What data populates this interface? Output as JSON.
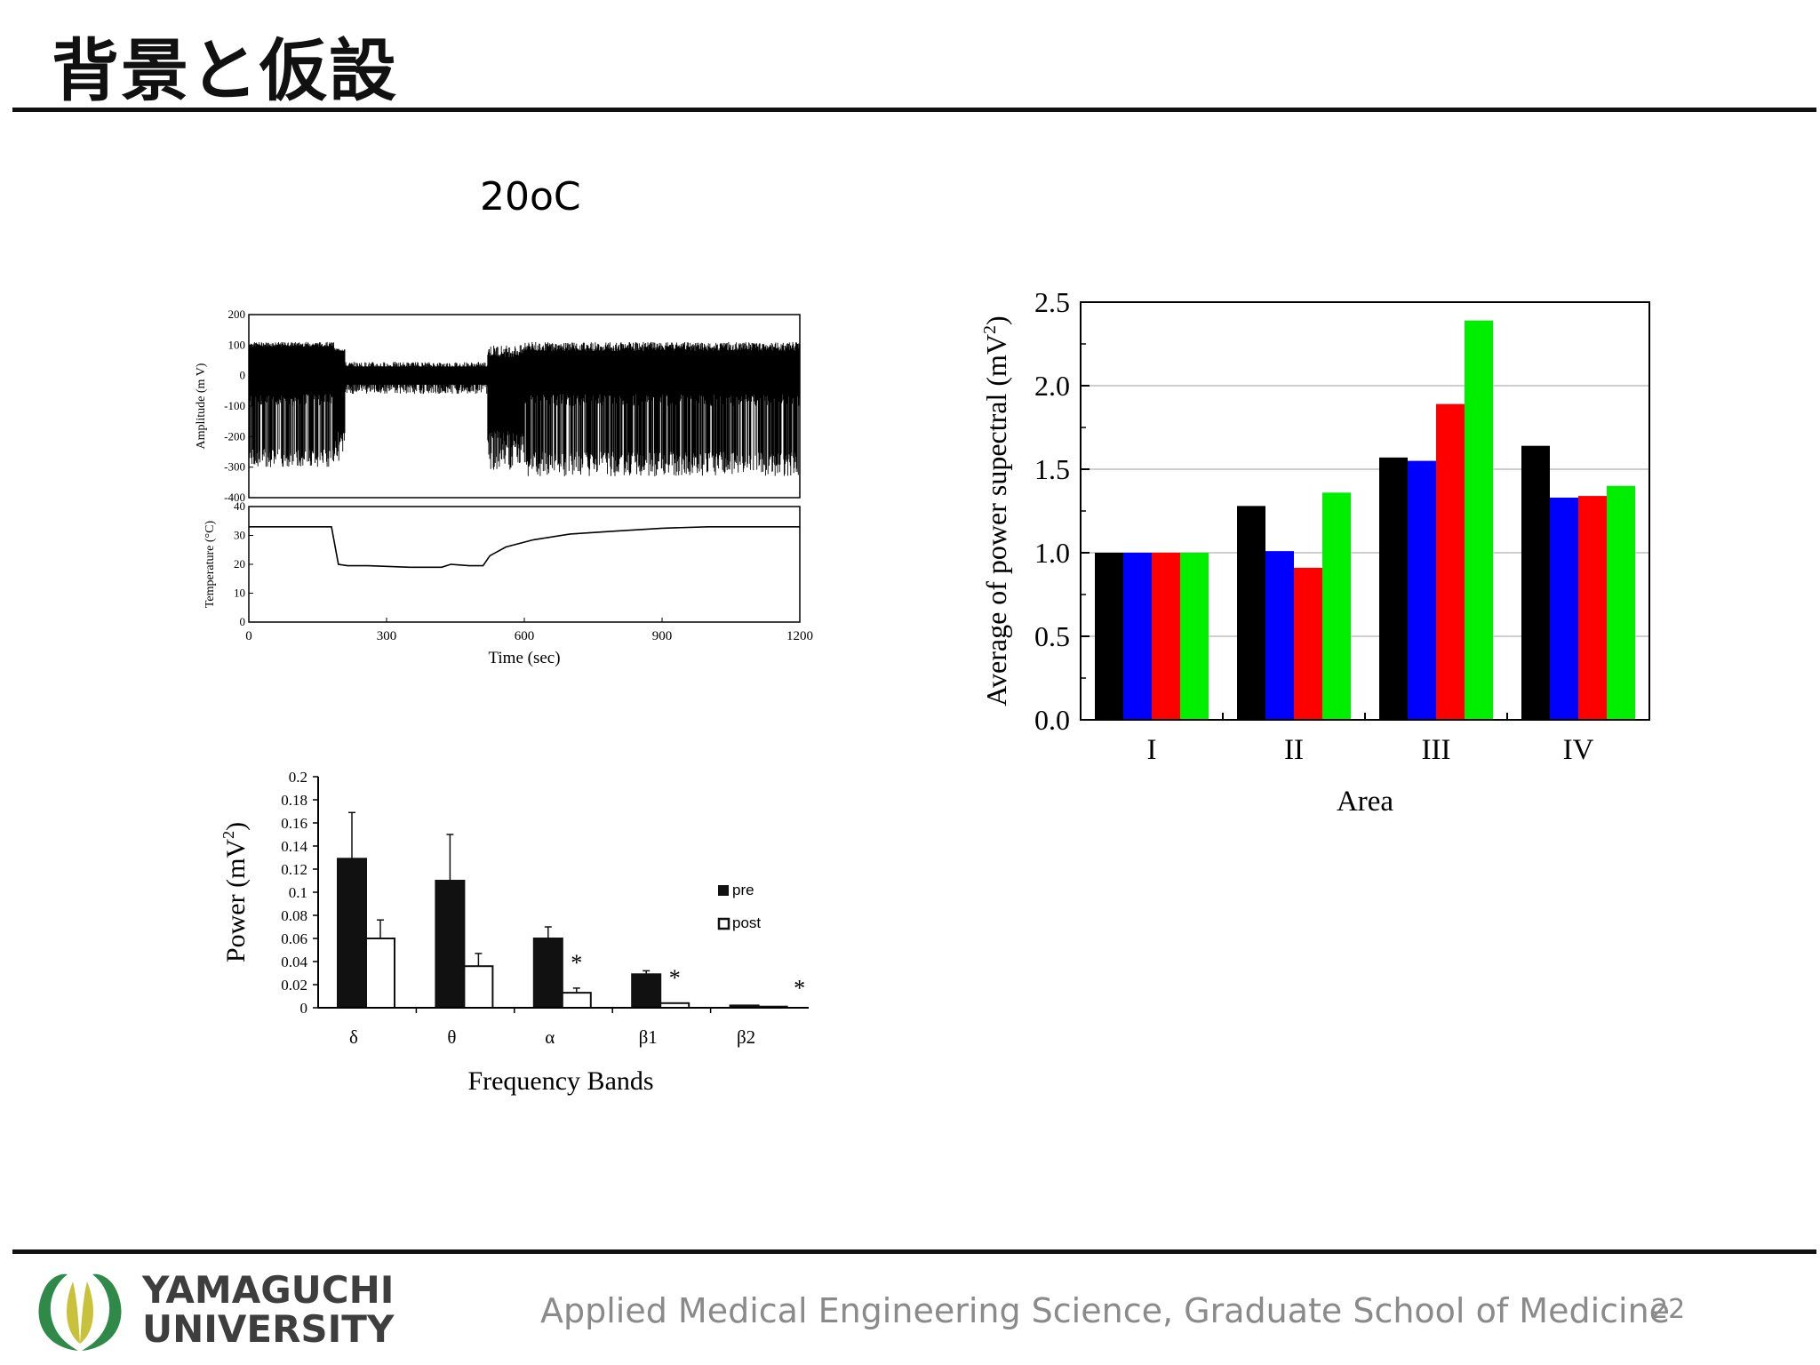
{
  "slide": {
    "title": "背景と仮設",
    "subtitle": "20oC",
    "footer": "Applied Medical Engineering Science, Graduate School of Medicine",
    "page_number": "22",
    "university": {
      "line1": "YAMAGUCHI",
      "line2": "UNIVERSITY"
    },
    "colors": {
      "rule": "#111111",
      "footer_text": "#8a8a8a",
      "logo_green": "#2f8a4a",
      "logo_yellow": "#c8c23a"
    }
  },
  "chart_data": [
    {
      "type": "line",
      "panels": [
        {
          "name": "amplitude",
          "ylabel": "Amplitude (m V)",
          "ylim": [
            -400,
            200
          ],
          "yticks": [
            "200",
            "100",
            "0",
            "-100",
            "-200",
            "-300",
            "-400"
          ],
          "xlim": [
            0,
            1200
          ]
        },
        {
          "name": "temperature",
          "ylabel": "Temperature (°C)",
          "ylim": [
            0,
            40
          ],
          "yticks": [
            "40",
            "30",
            "20",
            "10",
            "0"
          ],
          "xlim": [
            0,
            1200
          ],
          "x": [
            0,
            180,
            195,
            215,
            260,
            350,
            420,
            440,
            480,
            510,
            525,
            560,
            620,
            700,
            800,
            900,
            1000,
            1100,
            1200
          ],
          "y": [
            33,
            33,
            20,
            19.5,
            19.5,
            19,
            19,
            20,
            19.5,
            19.5,
            23,
            26,
            28.5,
            30.5,
            31.5,
            32.5,
            33,
            33,
            33
          ]
        }
      ],
      "xticks": [
        "0",
        "300",
        "600",
        "900",
        "1200"
      ],
      "xlabel": "Time (sec)"
    },
    {
      "type": "bar",
      "categories": [
        "I",
        "II",
        "III",
        "IV"
      ],
      "series": [
        {
          "color": "#000000",
          "values": [
            1.0,
            1.28,
            1.57,
            1.64
          ]
        },
        {
          "color": "#0000ff",
          "values": [
            1.0,
            1.01,
            1.55,
            1.33
          ]
        },
        {
          "color": "#ff0000",
          "values": [
            1.0,
            0.91,
            1.89,
            1.34
          ]
        },
        {
          "color": "#00ee00",
          "values": [
            1.0,
            1.36,
            2.39,
            1.4
          ]
        }
      ],
      "ylim": [
        0,
        2.5
      ],
      "yticks": [
        "0.0",
        "0.5",
        "1.0",
        "1.5",
        "2.0",
        "2.5"
      ],
      "ylabel_main": "Average of power supectral (mV",
      "ylabel_sup": "2",
      "ylabel_close": ")",
      "xlabel": "Area",
      "grid": true
    },
    {
      "type": "bar",
      "categories": [
        "δ",
        "θ",
        "α",
        "β1",
        "β2"
      ],
      "series": [
        {
          "name": "pre",
          "color": "#111111",
          "values": [
            0.129,
            0.11,
            0.06,
            0.029,
            0.002
          ],
          "errors": [
            0.04,
            0.04,
            0.01,
            0.003,
            0.0
          ]
        },
        {
          "name": "post",
          "color": "#ffffff",
          "values": [
            0.06,
            0.036,
            0.013,
            0.004,
            0.001
          ],
          "errors": [
            0.016,
            0.011,
            0.004,
            0.0,
            0.0
          ]
        }
      ],
      "significance": [
        "",
        "",
        "*",
        "*",
        "*"
      ],
      "ylim": [
        0,
        0.2
      ],
      "yticks": [
        "0",
        "0.02",
        "0.04",
        "0.06",
        "0.08",
        "0.1",
        "0.12",
        "0.14",
        "0.16",
        "0.18",
        "0.2"
      ],
      "ylabel_main": "Power (mV",
      "ylabel_sup": "2",
      "ylabel_close": ")",
      "xlabel": "Frequency Bands",
      "legend_position": "right"
    }
  ]
}
